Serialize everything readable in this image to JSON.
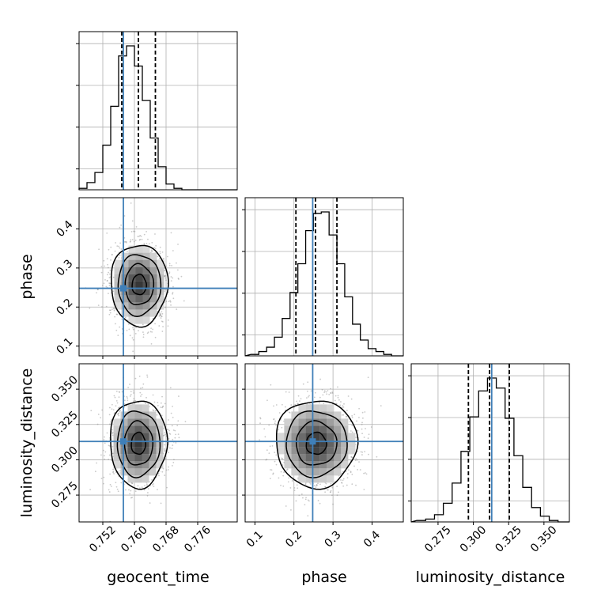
{
  "chart_data": {
    "type": "corner",
    "colors": {
      "truth": "#3f7fb8",
      "hist": "#000000",
      "quantile_line": "#000000",
      "grid": "#b0b0b0",
      "scatter": "#8a8a8a"
    },
    "grid": true,
    "parameters": [
      {
        "name": "geocent_time",
        "label": "geocent_time",
        "range": [
          0.746,
          0.786
        ],
        "ticks": [
          0.752,
          0.76,
          0.768,
          0.776
        ],
        "tick_labels": [
          "0.752",
          "0.760",
          "0.768",
          "0.776"
        ],
        "truth": 0.7572,
        "quantiles": [
          0.7568,
          0.761,
          0.7653
        ],
        "histogram": [
          0.01,
          0.05,
          0.12,
          0.31,
          0.58,
          0.93,
          1.0,
          0.86,
          0.62,
          0.36,
          0.16,
          0.04,
          0.01
        ],
        "hist_range": [
          0.746,
          0.772
        ]
      },
      {
        "name": "phase",
        "label": "phase",
        "range": [
          0.075,
          0.48
        ],
        "ticks": [
          0.1,
          0.2,
          0.3,
          0.4
        ],
        "tick_labels": [
          "0.1",
          "0.2",
          "0.3",
          "0.4"
        ],
        "truth": 0.248,
        "quantiles": [
          0.205,
          0.255,
          0.31
        ],
        "histogram": [
          0.01,
          0.03,
          0.06,
          0.13,
          0.26,
          0.44,
          0.64,
          0.87,
          0.99,
          1.0,
          0.84,
          0.64,
          0.41,
          0.22,
          0.11,
          0.05,
          0.03,
          0.01
        ],
        "hist_range": [
          0.09,
          0.45
        ]
      },
      {
        "name": "luminosity_distance",
        "label": "luminosity_distance",
        "range": [
          0.256,
          0.368
        ],
        "ticks": [
          0.275,
          0.3,
          0.325,
          0.35
        ],
        "tick_labels": [
          "0.275",
          "0.300",
          "0.325",
          "0.350"
        ],
        "truth": 0.313,
        "quantiles": [
          0.2965,
          0.3115,
          0.3255
        ],
        "histogram": [
          0.01,
          0.02,
          0.05,
          0.13,
          0.27,
          0.49,
          0.73,
          0.91,
          1.0,
          0.93,
          0.72,
          0.46,
          0.24,
          0.1,
          0.04,
          0.01
        ],
        "hist_range": [
          0.26,
          0.36
        ]
      }
    ],
    "pairs": [
      {
        "x": "geocent_time",
        "y": "phase",
        "center": [
          0.7612,
          0.257
        ],
        "sigma": [
          0.0036,
          0.052
        ]
      },
      {
        "x": "geocent_time",
        "y": "luminosity_distance",
        "center": [
          0.761,
          0.3115
        ],
        "sigma": [
          0.0036,
          0.0155
        ]
      },
      {
        "x": "phase",
        "y": "luminosity_distance",
        "center": [
          0.257,
          0.3115
        ],
        "sigma": [
          0.052,
          0.0155
        ]
      }
    ]
  }
}
